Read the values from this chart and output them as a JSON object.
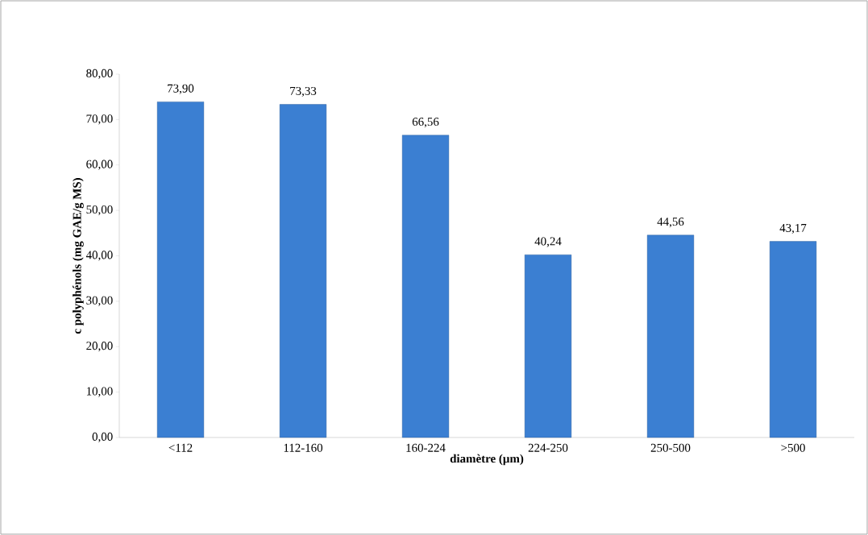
{
  "chart_data": {
    "type": "bar",
    "xlabel": "diamètre (µm)",
    "ylabel": "c polyphénols (mg GAE/g MS)",
    "categories": [
      "<112",
      "112-160",
      "160-224",
      "224-250",
      "250-500",
      ">500"
    ],
    "values": [
      73.9,
      73.33,
      66.56,
      40.24,
      44.56,
      43.17
    ],
    "value_labels": [
      "73,90",
      "73,33",
      "66,56",
      "40,24",
      "44,56",
      "43,17"
    ],
    "color": "#3b7fd2",
    "ylim": [
      0,
      80
    ],
    "yticks": [
      {
        "value": 0,
        "label": "0,00"
      },
      {
        "value": 10,
        "label": "10,00"
      },
      {
        "value": 20,
        "label": "20,00"
      },
      {
        "value": 30,
        "label": "30,00"
      },
      {
        "value": 40,
        "label": "40,00"
      },
      {
        "value": 50,
        "label": "50,00"
      },
      {
        "value": 60,
        "label": "60,00"
      },
      {
        "value": 70,
        "label": "70,00"
      },
      {
        "value": 80,
        "label": "80,00"
      }
    ]
  }
}
